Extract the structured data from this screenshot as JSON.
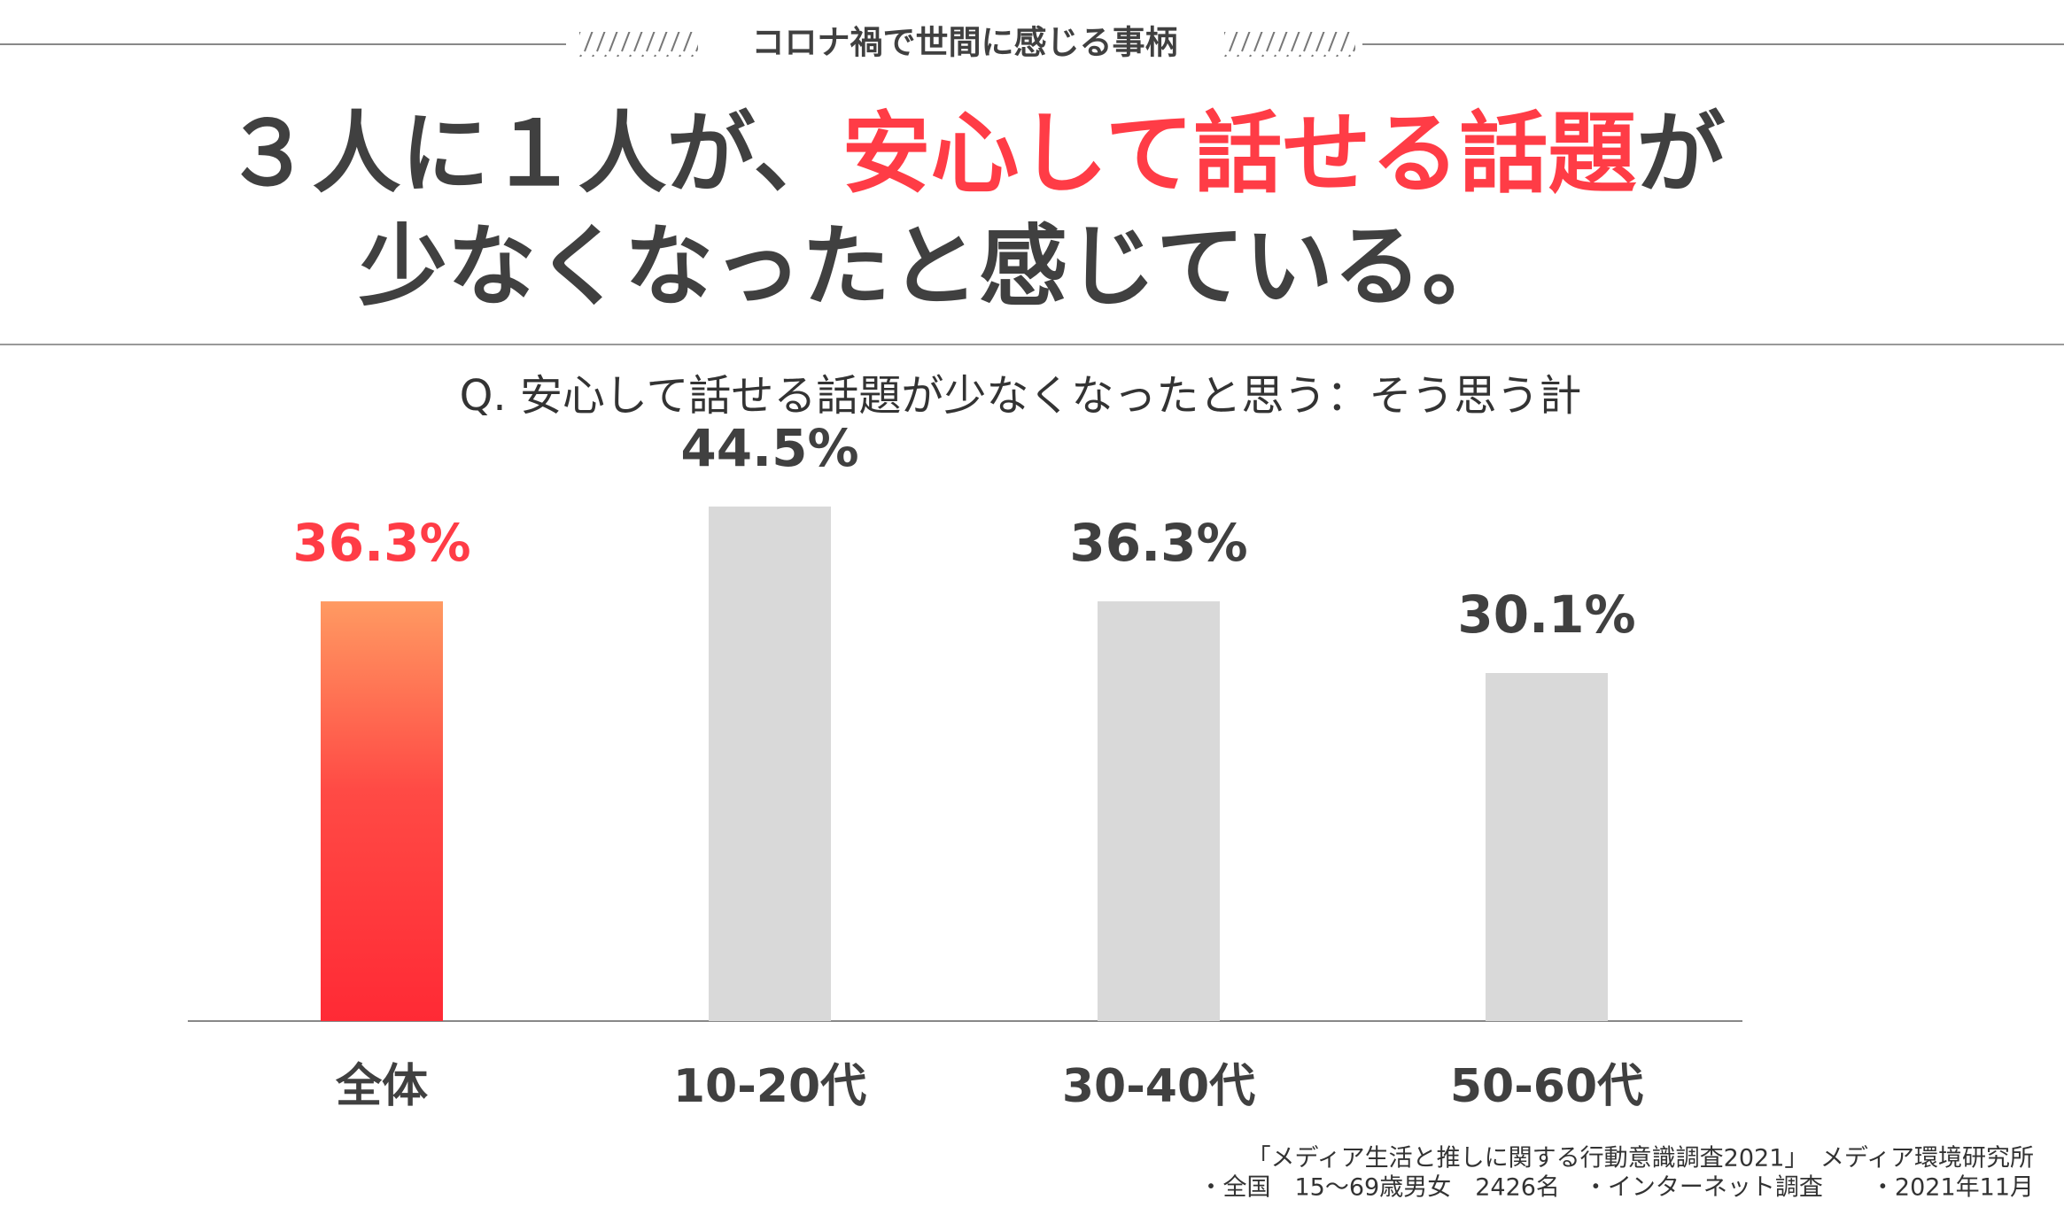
{
  "chart_data": {
    "type": "bar",
    "header": "コロナ禍で世間に感じる事柄",
    "title_line1": [
      "３人に１人が、",
      "安心して話せる話題",
      "が"
    ],
    "title_line2": "少なくなったと感じている。",
    "subtitle": "Q. 安心して話せる話題が少なくなったと思う：そう思う計",
    "categories": [
      "全体",
      "10-20代",
      "30-40代",
      "50-60代"
    ],
    "values": [
      36.3,
      44.5,
      36.3,
      30.1
    ],
    "value_labels": [
      "36.3%",
      "44.5%",
      "36.3%",
      "30.1%"
    ],
    "colors": [
      "#ff2a35",
      "#d9d9d9",
      "#d9d9d9",
      "#d9d9d9"
    ],
    "label_colors": [
      "#ff3c46",
      "#404040",
      "#404040",
      "#404040"
    ],
    "source": [
      "「メディア生活と推しに関する行動意識調査2021」　メディア環境研究所",
      "・全国　15～69歳男女　2426名　・インターネット調査　　・2021年11月"
    ]
  }
}
